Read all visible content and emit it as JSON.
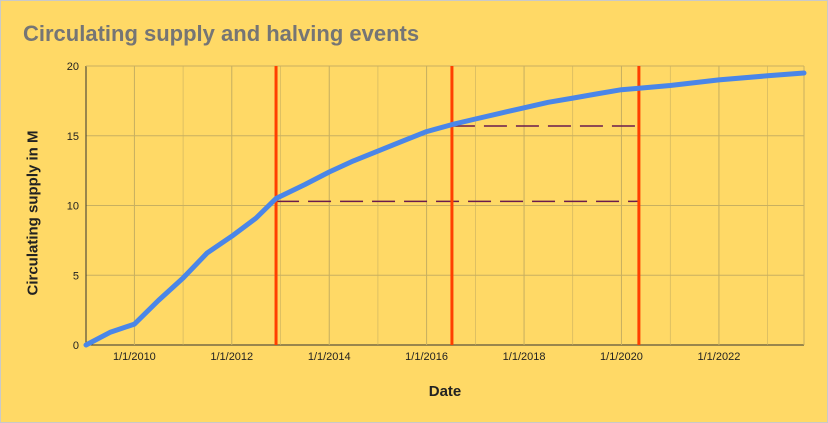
{
  "chart_data": {
    "type": "line",
    "title": "Circulating supply and halving events",
    "xlabel": "Date",
    "ylabel": "Circulating supply in M",
    "x_ticks": [
      "1/1/2010",
      "1/1/2012",
      "1/1/2014",
      "1/1/2016",
      "1/1/2018",
      "1/1/2020",
      "1/1/2022"
    ],
    "y_ticks": [
      0,
      5,
      10,
      15,
      20
    ],
    "xlim": [
      "2009-01-03",
      "2023-10-01"
    ],
    "ylim": [
      0,
      20
    ],
    "grid": true,
    "series": [
      {
        "color": "#4a86e8",
        "x": [
          "2009-01-03",
          "2009-07-01",
          "2010-01-01",
          "2010-07-01",
          "2011-01-01",
          "2011-07-01",
          "2012-01-01",
          "2012-07-01",
          "2012-11-28",
          "2013-07-01",
          "2014-01-01",
          "2014-07-01",
          "2015-01-01",
          "2015-07-01",
          "2016-01-01",
          "2016-07-09",
          "2017-01-01",
          "2017-07-01",
          "2018-01-01",
          "2018-07-01",
          "2019-01-01",
          "2019-07-01",
          "2020-01-01",
          "2020-05-11",
          "2021-01-01",
          "2022-01-01",
          "2023-01-01",
          "2023-10-01"
        ],
        "y": [
          0,
          0.9,
          1.5,
          3.2,
          4.8,
          6.6,
          7.8,
          9.1,
          10.5,
          11.5,
          12.4,
          13.2,
          13.9,
          14.6,
          15.3,
          15.8,
          16.2,
          16.6,
          17.0,
          17.4,
          17.7,
          18.0,
          18.3,
          18.4,
          18.6,
          19.0,
          19.3,
          19.5
        ]
      }
    ],
    "halving_events": [
      {
        "date": "2012-11-28",
        "supply": 10.5
      },
      {
        "date": "2016-07-09",
        "supply": 15.75
      },
      {
        "date": "2020-05-11",
        "supply": 18.4
      }
    ],
    "plateau_lines": [
      {
        "from": "2012-11-28",
        "to": "2020-05-11",
        "y": 10.3
      },
      {
        "from": "2016-07-09",
        "to": "2020-05-11",
        "y": 15.7
      }
    ],
    "colors": {
      "background": "#ffd966",
      "line": "#4a86e8",
      "halving": "#ff3f00",
      "dashed": "#6a1b4d",
      "grid": "#c8b060",
      "title": "#757575"
    }
  }
}
